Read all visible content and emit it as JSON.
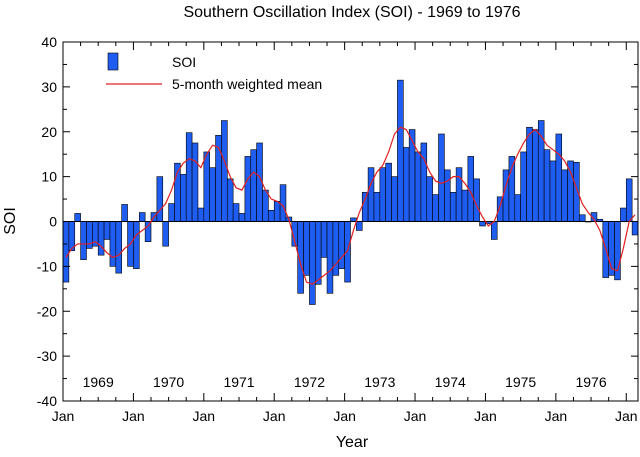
{
  "chart_data": {
    "type": "bar",
    "title": "Southern Oscillation Index (SOI) - 1969 to 1976",
    "xlabel": "Year",
    "ylabel": "SOI",
    "ylim": [
      -40,
      40
    ],
    "yticks": [
      "40",
      "30",
      "20",
      "10",
      "0",
      "-10",
      "-20",
      "-30",
      "-40"
    ],
    "x_tick_labels": [
      "Jan",
      "Jan",
      "Jan",
      "Jan",
      "Jan",
      "Jan",
      "Jan",
      "Jan",
      "Jan"
    ],
    "year_labels": [
      "1969",
      "1970",
      "1971",
      "1972",
      "1973",
      "1974",
      "1975",
      "1976"
    ],
    "start": "1969-01",
    "colors": {
      "bar": "#1f5df0",
      "bar_edge": "#000000",
      "mean_line": "#e02020"
    },
    "legend": {
      "position": "top-left",
      "entries": [
        "SOI",
        "5-month weighted mean"
      ]
    },
    "series": [
      {
        "name": "SOI",
        "kind": "bar",
        "values": [
          -13.5,
          -6.5,
          1.8,
          -8.5,
          -6.0,
          -5.5,
          -7.5,
          -4.0,
          -10.0,
          -11.5,
          3.8,
          -10.0,
          -10.5,
          2.0,
          -4.5,
          2.0,
          10.0,
          -5.5,
          4.0,
          13.0,
          10.5,
          19.8,
          17.5,
          3.0,
          15.5,
          12.0,
          19.2,
          22.5,
          9.5,
          4.0,
          1.8,
          14.5,
          16.0,
          17.5,
          7.0,
          2.5,
          4.5,
          8.2,
          1.0,
          -5.5,
          -16.0,
          -12.0,
          -18.5,
          -14.0,
          -8.0,
          -16.0,
          -12.0,
          -10.5,
          -13.5,
          0.8,
          -2.0,
          6.5,
          12.0,
          6.5,
          12.0,
          13.0,
          10.0,
          31.5,
          16.5,
          20.5,
          15.5,
          17.5,
          10.0,
          6.0,
          19.5,
          11.5,
          6.5,
          12.0,
          7.0,
          14.5,
          9.5,
          -1.0,
          -0.5,
          -4.0,
          5.5,
          11.5,
          14.5,
          6.0,
          15.5,
          21.0,
          20.5,
          22.5,
          16.0,
          13.5,
          19.5,
          11.5,
          13.5,
          13.2,
          1.5,
          0.0,
          2.0,
          0.5,
          -12.5,
          -12.0,
          -13.0,
          3.0,
          9.5,
          -3.0
        ]
      },
      {
        "name": "5-month weighted mean",
        "kind": "line",
        "values": [
          -8.0,
          -6.0,
          -5.0,
          -5.0,
          -5.0,
          -4.5,
          -5.5,
          -7.0,
          -8.0,
          -7.5,
          -6.0,
          -5.0,
          -3.0,
          -2.0,
          -1.0,
          1.0,
          2.5,
          4.0,
          7.0,
          11.0,
          13.0,
          14.0,
          13.5,
          12.0,
          15.0,
          17.0,
          16.5,
          13.5,
          10.0,
          7.5,
          7.0,
          9.5,
          11.0,
          10.0,
          7.0,
          5.0,
          4.5,
          3.5,
          0.5,
          -4.5,
          -9.5,
          -13.5,
          -14.0,
          -13.0,
          -12.0,
          -11.0,
          -9.5,
          -8.0,
          -6.5,
          -2.0,
          2.0,
          5.0,
          8.5,
          11.0,
          12.5,
          15.5,
          19.5,
          21.0,
          20.5,
          18.0,
          15.5,
          14.0,
          11.0,
          9.0,
          8.5,
          9.0,
          10.0,
          10.0,
          8.5,
          6.5,
          3.5,
          1.0,
          -1.0,
          0.0,
          3.5,
          8.0,
          12.0,
          15.0,
          17.5,
          19.5,
          20.5,
          19.0,
          17.0,
          16.0,
          15.0,
          13.5,
          11.0,
          7.5,
          4.0,
          2.0,
          0.5,
          -2.0,
          -6.0,
          -10.5,
          -11.0,
          -6.0,
          0.0,
          1.5
        ]
      }
    ]
  }
}
